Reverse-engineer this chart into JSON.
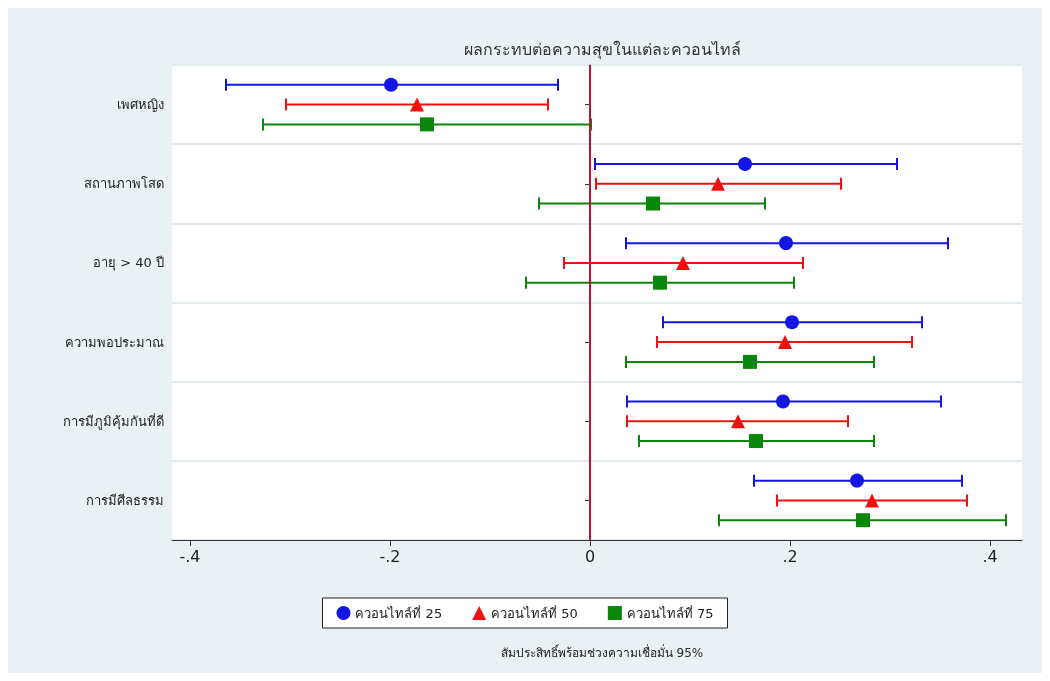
{
  "chart_data": {
    "type": "scatter",
    "orientation": "horizontal",
    "title": "ผลกระทบต่อความสุขในแต่ละควอนไทล์",
    "categories": [
      "เพศหญิง",
      "สถานภาพโสด",
      "อายุ > 40 ปี",
      "ความพอประมาณ",
      "การมีภูมิคุ้มกันที่ดี",
      "การมีศีลธรรม"
    ],
    "series": [
      {
        "name": "ควอนไทล์ที่ 25",
        "color": "#1515e6",
        "marker": "circle",
        "values": [
          -0.199,
          0.155,
          0.196,
          0.202,
          0.193,
          0.267
        ],
        "errors": [
          [
            -0.364,
            -0.032
          ],
          [
            0.005,
            0.307
          ],
          [
            0.036,
            0.358
          ],
          [
            0.073,
            0.332
          ],
          [
            0.037,
            0.351
          ],
          [
            0.164,
            0.372
          ]
        ]
      },
      {
        "name": "ควอนไทล์ที่ 50",
        "color": "#f01010",
        "marker": "triangle",
        "values": [
          -0.173,
          0.128,
          0.093,
          0.195,
          0.148,
          0.282
        ],
        "errors": [
          [
            -0.304,
            -0.042
          ],
          [
            0.006,
            0.251
          ],
          [
            -0.026,
            0.213
          ],
          [
            0.067,
            0.322
          ],
          [
            0.037,
            0.258
          ],
          [
            0.187,
            0.377
          ]
        ]
      },
      {
        "name": "ควอนไทล์ที่ 75",
        "color": "#0a870a",
        "marker": "square",
        "values": [
          -0.163,
          0.063,
          0.07,
          0.16,
          0.166,
          0.273
        ],
        "errors": [
          [
            -0.327,
            0.001
          ],
          [
            -0.051,
            0.175
          ],
          [
            -0.064,
            0.204
          ],
          [
            0.036,
            0.284
          ],
          [
            0.049,
            0.284
          ],
          [
            0.129,
            0.416
          ]
        ]
      }
    ],
    "xlim": [
      -0.418,
      0.432
    ],
    "xticks": [
      {
        "value": -0.4,
        "label": "-.4"
      },
      {
        "value": -0.2,
        "label": "-.2"
      },
      0,
      {
        "value": 0.2,
        "label": ".2"
      },
      {
        "value": 0.4,
        "label": ".4"
      }
    ],
    "ref_lines": [
      {
        "axis": "x",
        "value": 0,
        "color": "#c0103a",
        "line_style": "solid"
      }
    ],
    "grid": "y",
    "legend": "bottom",
    "annotations": [
      "สัมประสิทธิ์พร้อมช่วงความเชื่อมั่น 95%"
    ]
  }
}
